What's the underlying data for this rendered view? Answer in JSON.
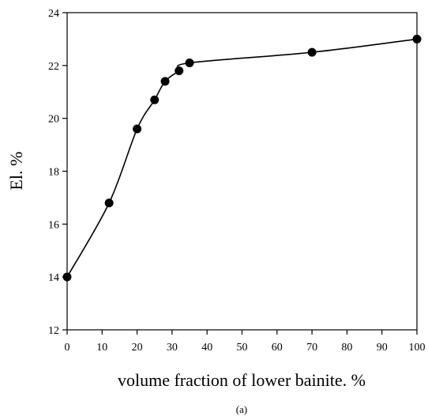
{
  "chart_data": {
    "type": "line",
    "title": "",
    "xlabel": "volume fraction of lower bainite. %",
    "ylabel": "El. %",
    "xlim": [
      0,
      100
    ],
    "ylim": [
      12,
      24
    ],
    "xticks": [
      0,
      10,
      20,
      30,
      40,
      50,
      60,
      70,
      80,
      90,
      100
    ],
    "yticks": [
      12,
      14,
      16,
      18,
      20,
      22,
      24
    ],
    "grid": false,
    "legend": "none",
    "line_color": "#000000",
    "marker": "filled-circle",
    "series": [
      {
        "x": [
          0,
          12,
          20,
          25,
          28,
          32,
          35,
          70,
          100
        ],
        "y": [
          14.0,
          16.8,
          19.6,
          20.7,
          21.4,
          21.8,
          22.1,
          22.5,
          23.0
        ]
      }
    ]
  },
  "caption": "(a)"
}
